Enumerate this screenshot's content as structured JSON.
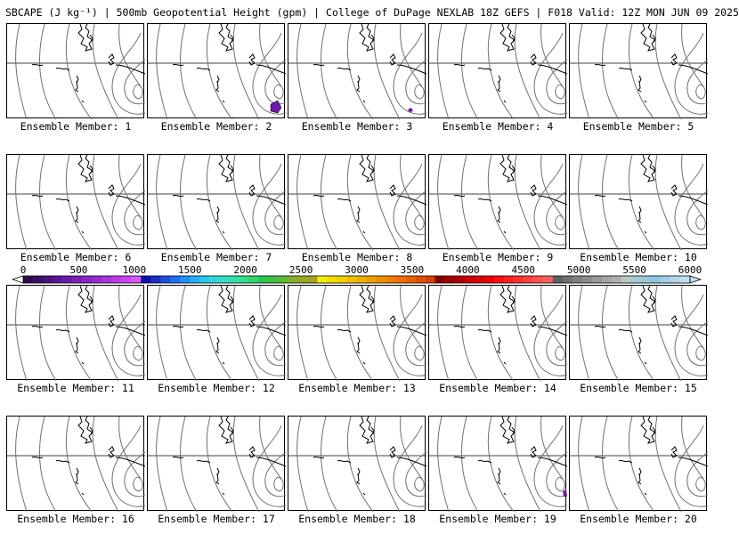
{
  "header": {
    "title": "SBCAPE (J kg⁻¹) | 500mb Geopotential Height (gpm) | College of DuPage NEXLAB 18Z GEFS | F018 Valid: 12Z MON JUN 09 2025"
  },
  "colorbar": {
    "ticks": [
      "0",
      "500",
      "1000",
      "1500",
      "2000",
      "2500",
      "3000",
      "3500",
      "4000",
      "4500",
      "5000",
      "5500",
      "6000"
    ],
    "colors": [
      "#2e0a4a",
      "#3b0f66",
      "#4a117f",
      "#5a1696",
      "#6a1aa8",
      "#7b1fb8",
      "#8a24c6",
      "#9a2bd2",
      "#aa33de",
      "#bb3be8",
      "#cc44f0",
      "#dd55f6",
      "#1010b0",
      "#1530c8",
      "#1a50e0",
      "#1a70f0",
      "#1a90f8",
      "#20b0f8",
      "#28c8f0",
      "#30d8e0",
      "#30e0c8",
      "#30e0a8",
      "#30e088",
      "#30d868",
      "#28c850",
      "#40c040",
      "#60b838",
      "#80b030",
      "#98a828",
      "#a8a020",
      "#f0f000",
      "#f0e000",
      "#f0d000",
      "#f0c000",
      "#f0b000",
      "#f0a000",
      "#f09000",
      "#f08000",
      "#f07000",
      "#e86000",
      "#e05000",
      "#d84000",
      "#8a0000",
      "#a00000",
      "#b40000",
      "#c80000",
      "#dc0000",
      "#f00000",
      "#ff1010",
      "#ff2020",
      "#ff3030",
      "#ff4040",
      "#ff5050",
      "#ff6060",
      "#606060",
      "#707070",
      "#808080",
      "#8c8c8c",
      "#989898",
      "#a4a4a4",
      "#b0b0b0",
      "#b8c8cc",
      "#a8c8d4",
      "#98c8dc",
      "#88c8e0",
      "#a0d0e4",
      "#b0d8e8",
      "#c0e0ec"
    ]
  },
  "panels": [
    {
      "label": "Ensemble Member: 1"
    },
    {
      "label": "Ensemble Member: 2"
    },
    {
      "label": "Ensemble Member: 3"
    },
    {
      "label": "Ensemble Member: 4"
    },
    {
      "label": "Ensemble Member: 5"
    },
    {
      "label": "Ensemble Member: 6"
    },
    {
      "label": "Ensemble Member: 7"
    },
    {
      "label": "Ensemble Member: 8"
    },
    {
      "label": "Ensemble Member: 9"
    },
    {
      "label": "Ensemble Member: 10"
    },
    {
      "label": "Ensemble Member: 11"
    },
    {
      "label": "Ensemble Member: 12"
    },
    {
      "label": "Ensemble Member: 13"
    },
    {
      "label": "Ensemble Member: 14"
    },
    {
      "label": "Ensemble Member: 15"
    },
    {
      "label": "Ensemble Member: 16"
    },
    {
      "label": "Ensemble Member: 17"
    },
    {
      "label": "Ensemble Member: 18"
    },
    {
      "label": "Ensemble Member: 19"
    },
    {
      "label": "Ensemble Member: 20"
    }
  ],
  "colors": {
    "contour": "#707070",
    "coast": "#000000",
    "cape_low": "#6a1aa8"
  }
}
